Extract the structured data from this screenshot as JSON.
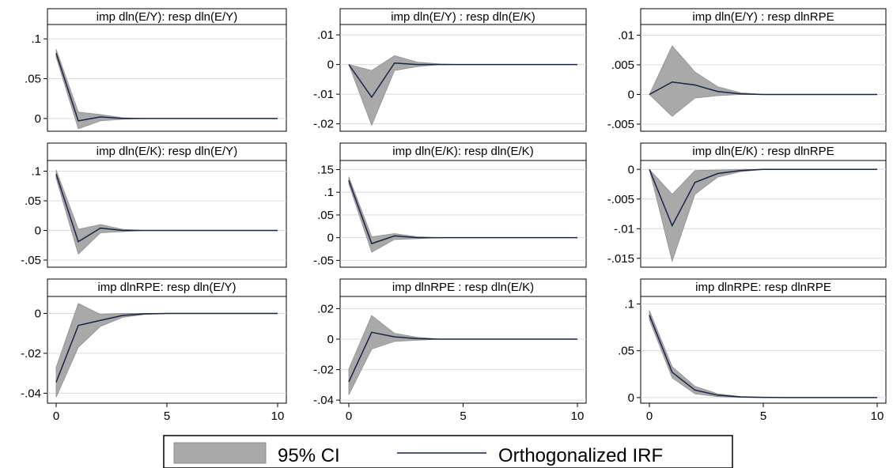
{
  "legend": {
    "ci_label": "95% CI",
    "irf_label": "Orthogonalized IRF"
  },
  "colors": {
    "ci_fill": "#a9a9a9",
    "ci_stroke": "#8f8f8f",
    "irf_line": "#1a2440",
    "title_bg": "#ffffff",
    "grid": "#dcdcdc"
  },
  "chart_data": [
    {
      "type": "area",
      "title": "imp dln(E/Y): resp dln(E/Y)",
      "x": [
        0,
        1,
        2,
        3,
        4,
        5,
        6,
        7,
        8,
        9,
        10
      ],
      "irf": [
        0.082,
        -0.003,
        0.002,
        0,
        0,
        0,
        0,
        0,
        0,
        0,
        0
      ],
      "lower": [
        0.077,
        -0.013,
        -0.003,
        -0.001,
        0,
        0,
        0,
        0,
        0,
        0,
        0
      ],
      "upper": [
        0.087,
        0.008,
        0.005,
        0.001,
        0,
        0,
        0,
        0,
        0,
        0,
        0
      ],
      "ylim": [
        -0.016,
        0.118
      ],
      "yticks": [
        0,
        0.05,
        0.1
      ],
      "ytick_labels": [
        "0",
        ".05",
        ".1"
      ],
      "xticks": [],
      "xtick_labels": []
    },
    {
      "type": "area",
      "title": "imp dln(E/Y) : resp dln(E/K)",
      "x": [
        0,
        1,
        2,
        3,
        4,
        5,
        6,
        7,
        8,
        9,
        10
      ],
      "irf": [
        0,
        -0.011,
        0.0005,
        0,
        0,
        0,
        0,
        0,
        0,
        0,
        0
      ],
      "lower": [
        0,
        -0.0205,
        -0.002,
        -0.0007,
        0,
        0,
        0,
        0,
        0,
        0,
        0
      ],
      "upper": [
        0,
        -0.002,
        0.003,
        0.0008,
        0.0002,
        0,
        0,
        0,
        0,
        0,
        0
      ],
      "ylim": [
        -0.0225,
        0.0135
      ],
      "yticks": [
        -0.02,
        -0.01,
        0,
        0.01
      ],
      "ytick_labels": [
        "-.02",
        "-.01",
        "0",
        ".01"
      ],
      "xticks": [],
      "xtick_labels": []
    },
    {
      "type": "area",
      "title": "imp dln(E/Y) : resp dlnRPE",
      "x": [
        0,
        1,
        2,
        3,
        4,
        5,
        6,
        7,
        8,
        9,
        10
      ],
      "irf": [
        0,
        0.0021,
        0.0016,
        0.0005,
        0.0001,
        0,
        0,
        0,
        0,
        0,
        0
      ],
      "lower": [
        0,
        -0.0037,
        -0.0006,
        -0.0002,
        0,
        0,
        0,
        0,
        0,
        0,
        0
      ],
      "upper": [
        0,
        0.0082,
        0.0038,
        0.0013,
        0.0003,
        0,
        0,
        0,
        0,
        0,
        0
      ],
      "ylim": [
        -0.0062,
        0.0118
      ],
      "yticks": [
        -0.005,
        0,
        0.005,
        0.01
      ],
      "ytick_labels": [
        "-.005",
        "0",
        ".005",
        ".01"
      ],
      "xticks": [],
      "xtick_labels": []
    },
    {
      "type": "area",
      "title": "imp dln(E/K): resp dln(E/Y)",
      "x": [
        0,
        1,
        2,
        3,
        4,
        5,
        6,
        7,
        8,
        9,
        10
      ],
      "irf": [
        0.095,
        -0.019,
        0.004,
        0,
        0,
        0,
        0,
        0,
        0,
        0,
        0
      ],
      "lower": [
        0.088,
        -0.04,
        -0.004,
        -0.002,
        0,
        0,
        0,
        0,
        0,
        0,
        0
      ],
      "upper": [
        0.102,
        0.002,
        0.01,
        0.002,
        0,
        0,
        0,
        0,
        0,
        0,
        0
      ],
      "ylim": [
        -0.062,
        0.118
      ],
      "yticks": [
        -0.05,
        0,
        0.05,
        0.1
      ],
      "ytick_labels": [
        "-.05",
        "0",
        ".05",
        ".1"
      ],
      "xticks": [],
      "xtick_labels": []
    },
    {
      "type": "area",
      "title": "imp dln(E/K): resp dln(E/K)",
      "x": [
        0,
        1,
        2,
        3,
        4,
        5,
        6,
        7,
        8,
        9,
        10
      ],
      "irf": [
        0.126,
        -0.013,
        0.004,
        0,
        0,
        0,
        0,
        0,
        0,
        0,
        0
      ],
      "lower": [
        0.118,
        -0.032,
        -0.004,
        -0.002,
        0,
        0,
        0,
        0,
        0,
        0,
        0
      ],
      "upper": [
        0.134,
        0.002,
        0.009,
        0.002,
        0,
        0,
        0,
        0,
        0,
        0,
        0
      ],
      "ylim": [
        -0.065,
        0.17
      ],
      "yticks": [
        -0.05,
        0,
        0.05,
        0.1,
        0.15
      ],
      "ytick_labels": [
        "-.05",
        "0",
        ".05",
        ".1",
        ".15"
      ],
      "xticks": [],
      "xtick_labels": []
    },
    {
      "type": "area",
      "title": "imp dln(E/K) : resp dlnRPE",
      "x": [
        0,
        1,
        2,
        3,
        4,
        5,
        6,
        7,
        8,
        9,
        10
      ],
      "irf": [
        0,
        -0.0095,
        -0.0022,
        -0.0007,
        -0.0002,
        0,
        0,
        0,
        0,
        0,
        0
      ],
      "lower": [
        0,
        -0.0155,
        -0.0042,
        -0.0013,
        -0.0004,
        0,
        0,
        0,
        0,
        0,
        0
      ],
      "upper": [
        0,
        -0.0042,
        -0.0002,
        -0.0001,
        0,
        0,
        0,
        0,
        0,
        0,
        0
      ],
      "ylim": [
        -0.0165,
        0.0015
      ],
      "yticks": [
        -0.015,
        -0.01,
        -0.005,
        0
      ],
      "ytick_labels": [
        "-.015",
        "-.01",
        "-.005",
        "0"
      ],
      "xticks": [],
      "xtick_labels": []
    },
    {
      "type": "area",
      "title": "imp dlnRPE: resp dln(E/Y)",
      "x": [
        0,
        1,
        2,
        3,
        4,
        5,
        6,
        7,
        8,
        9,
        10
      ],
      "irf": [
        -0.0345,
        -0.006,
        -0.0035,
        -0.001,
        -0.0002,
        0,
        0,
        0,
        0,
        0,
        0
      ],
      "lower": [
        -0.042,
        -0.017,
        -0.0065,
        -0.002,
        -0.0005,
        0,
        0,
        0,
        0,
        0,
        0
      ],
      "upper": [
        -0.027,
        0.005,
        -0.0005,
        0,
        0,
        0,
        0,
        0,
        0,
        0,
        0
      ],
      "ylim": [
        -0.045,
        0.0085
      ],
      "yticks": [
        -0.04,
        -0.02,
        0
      ],
      "ytick_labels": [
        "-.04",
        "-.02",
        "0"
      ],
      "xticks": [
        0,
        5,
        10
      ],
      "xtick_labels": [
        "0",
        "5",
        "10"
      ]
    },
    {
      "type": "area",
      "title": "imp dlnRPE : resp dln(E/K)",
      "x": [
        0,
        1,
        2,
        3,
        4,
        5,
        6,
        7,
        8,
        9,
        10
      ],
      "irf": [
        -0.028,
        0.0045,
        0.0015,
        0.0003,
        0,
        0,
        0,
        0,
        0,
        0,
        0
      ],
      "lower": [
        -0.0365,
        -0.0065,
        -0.0015,
        -0.0007,
        0,
        0,
        0,
        0,
        0,
        0,
        0
      ],
      "upper": [
        -0.0195,
        0.0155,
        0.0038,
        0.0012,
        0,
        0,
        0,
        0,
        0,
        0,
        0
      ],
      "ylim": [
        -0.042,
        0.028
      ],
      "yticks": [
        -0.04,
        -0.02,
        0,
        0.02
      ],
      "ytick_labels": [
        "-.04",
        "-.02",
        "0",
        ".02"
      ],
      "xticks": [
        0,
        5,
        10
      ],
      "xtick_labels": [
        "0",
        "5",
        "10"
      ]
    },
    {
      "type": "area",
      "title": "imp dlnRPE: resp dlnRPE",
      "x": [
        0,
        1,
        2,
        3,
        4,
        5,
        6,
        7,
        8,
        9,
        10
      ],
      "irf": [
        0.088,
        0.027,
        0.008,
        0.0025,
        0.0007,
        0.0002,
        0,
        0,
        0,
        0,
        0
      ],
      "lower": [
        0.083,
        0.021,
        0.004,
        0.001,
        0.0002,
        0,
        0,
        0,
        0,
        0,
        0
      ],
      "upper": [
        0.093,
        0.033,
        0.012,
        0.004,
        0.0012,
        0.0003,
        0,
        0,
        0,
        0,
        0
      ],
      "ylim": [
        -0.006,
        0.108
      ],
      "yticks": [
        0,
        0.05,
        0.1
      ],
      "ytick_labels": [
        "0",
        ".05",
        ".1"
      ],
      "xticks": [
        0,
        5,
        10
      ],
      "xtick_labels": [
        "0",
        "5",
        "10"
      ]
    }
  ]
}
